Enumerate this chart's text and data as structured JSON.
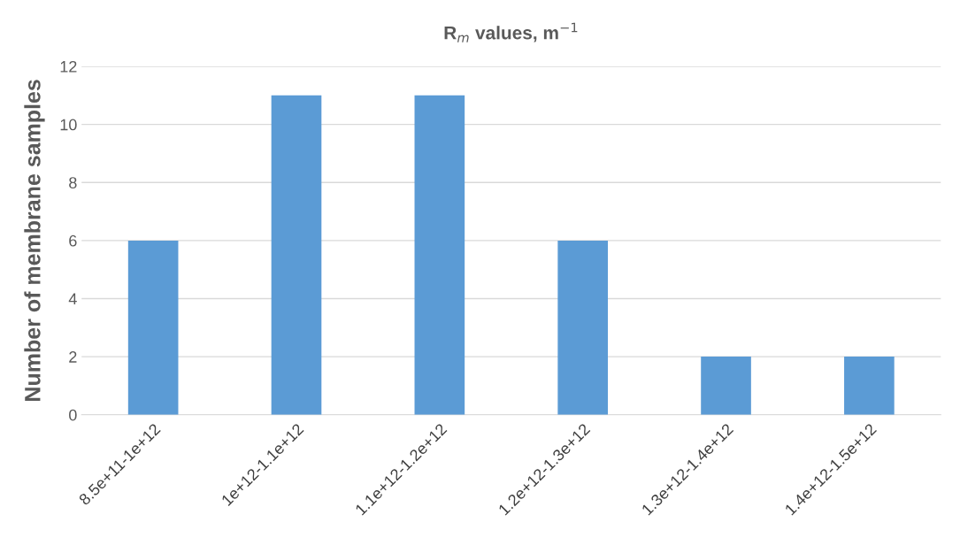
{
  "chart_data": {
    "type": "bar",
    "title": "R$_{m}$ values, m$^{−1}$",
    "ylabel": "Number of membrane samples",
    "categories": [
      "8.5e+11-1e+12",
      "1e+12-1.1e+12",
      "1.1e+12-1.2e+12",
      "1.2e+12-1.3e+12",
      "1.3e+12-1.4e+12",
      "1.4e+12-1.5e+12"
    ],
    "values": [
      6,
      11,
      11,
      6,
      2,
      2
    ],
    "color": "#5b9bd5",
    "ylim": [
      0,
      12
    ],
    "yticks": [
      0,
      2,
      4,
      6,
      8,
      10,
      12
    ],
    "grid": "y"
  }
}
